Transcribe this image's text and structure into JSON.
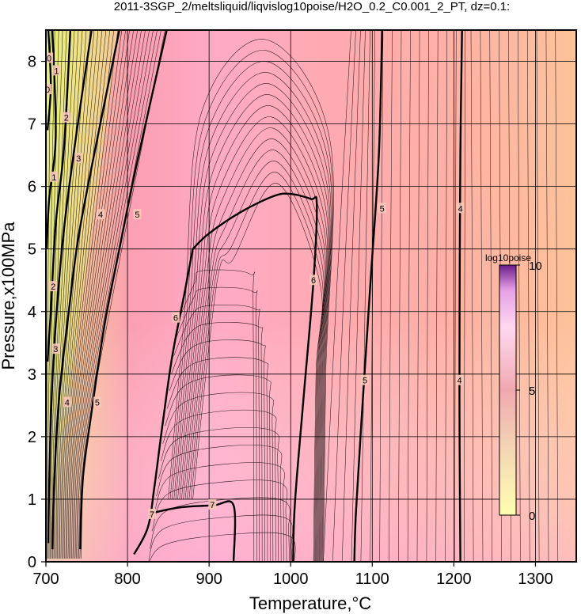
{
  "chart_data": {
    "type": "heatmap",
    "title": "2011-3SGP_2/meltsliquid/liqvislog10poise/H2O_0.2_C0.001_2_PT, dz=0.1:",
    "xlabel": "Temperature,°C",
    "ylabel": "Pressure,x100MPa",
    "xlim": [
      700,
      1350
    ],
    "ylim": [
      0,
      8.5
    ],
    "x_ticks": [
      700,
      800,
      900,
      1000,
      1100,
      1200,
      1300
    ],
    "y_ticks": [
      0,
      1,
      2,
      3,
      4,
      5,
      6,
      7,
      8
    ],
    "grid": true,
    "colorbar": {
      "title": "log10poise",
      "range": [
        0,
        10
      ],
      "ticks": [
        0,
        5,
        10
      ],
      "colors": [
        "#ffffb0",
        "#f0c0a0",
        "#ffb0c0",
        "#ff90ff",
        "#5000a0"
      ]
    },
    "background_colors": {
      "low_T_high_P": "#e8f08a",
      "mid": "#ffa6b4",
      "high_T": "#fdbf9a"
    },
    "contours": [
      {
        "level": "0",
        "points": [
          [
            703,
            8.5
          ],
          [
            706,
            7.6
          ],
          [
            702,
            6.9
          ]
        ]
      },
      {
        "level": "1",
        "points": [
          [
            708,
            8.5
          ],
          [
            712,
            6.8
          ],
          [
            704,
            5.8
          ],
          [
            701,
            5.0
          ]
        ]
      },
      {
        "level": "2",
        "points": [
          [
            730,
            8.5
          ],
          [
            722,
            6.6
          ],
          [
            712,
            5.4
          ],
          [
            706,
            4.0
          ],
          [
            702,
            3.2
          ]
        ]
      },
      {
        "level": "3",
        "points": [
          [
            756,
            8.5
          ],
          [
            738,
            6.9
          ],
          [
            722,
            5.3
          ],
          [
            712,
            3.8
          ],
          [
            707,
            2.6
          ],
          [
            704,
            1.2
          ],
          [
            703,
            0.3
          ]
        ]
      },
      {
        "level": "4",
        "points": [
          [
            790,
            8.5
          ],
          [
            762,
            6.7
          ],
          [
            740,
            5.2
          ],
          [
            728,
            4.0
          ],
          [
            716,
            2.6
          ],
          [
            710,
            1.2
          ],
          [
            708,
            0.2
          ]
        ]
      },
      {
        "level": "5",
        "points": [
          [
            848,
            8.5
          ],
          [
            812,
            6.4
          ],
          [
            790,
            5.0
          ],
          [
            772,
            3.8
          ],
          [
            756,
            2.4
          ],
          [
            745,
            1.3
          ],
          [
            742,
            0.2
          ]
        ]
      },
      {
        "level": "6",
        "points": [
          [
            880,
            5.0
          ],
          [
            900,
            5.25
          ],
          [
            940,
            5.6
          ],
          [
            980,
            5.85
          ],
          [
            1000,
            5.88
          ],
          [
            1025,
            5.8
          ],
          [
            1032,
            5.72
          ],
          [
            1028,
            4.5
          ],
          [
            1015,
            2.5
          ],
          [
            1005,
            0.9
          ],
          [
            1003,
            0
          ]
        ]
      },
      {
        "level": "6",
        "points": [
          [
            880,
            5.0
          ],
          [
            870,
            4.3
          ],
          [
            855,
            3.3
          ],
          [
            843,
            2.2
          ],
          [
            833,
            1.2
          ],
          [
            825,
            0.55
          ],
          [
            808,
            0.12
          ]
        ]
      },
      {
        "level": "7",
        "points": [
          [
            830,
            0.78
          ],
          [
            865,
            0.87
          ],
          [
            905,
            0.9
          ],
          [
            930,
            0.9
          ],
          [
            930,
            0
          ]
        ]
      },
      {
        "level": "5",
        "points": [
          [
            1112,
            8.5
          ],
          [
            1108,
            6.5
          ],
          [
            1098,
            4.5
          ],
          [
            1088,
            2.5
          ],
          [
            1080,
            0.8
          ],
          [
            1078,
            0
          ]
        ]
      },
      {
        "level": "4",
        "points": [
          [
            1210,
            8.5
          ],
          [
            1208,
            6.5
          ],
          [
            1207,
            4.0
          ],
          [
            1207,
            2.0
          ],
          [
            1208,
            0
          ]
        ]
      }
    ],
    "contour_labels": [
      {
        "text": "0",
        "x": 704,
        "y": 8.05
      },
      {
        "text": "0",
        "x": 702,
        "y": 7.55
      },
      {
        "text": "1",
        "x": 713,
        "y": 7.85
      },
      {
        "text": "1",
        "x": 710,
        "y": 6.15
      },
      {
        "text": "2",
        "x": 725,
        "y": 7.1
      },
      {
        "text": "2",
        "x": 709,
        "y": 4.4
      },
      {
        "text": "3",
        "x": 740,
        "y": 6.45
      },
      {
        "text": "3",
        "x": 712,
        "y": 3.4
      },
      {
        "text": "4",
        "x": 767,
        "y": 5.55
      },
      {
        "text": "4",
        "x": 726,
        "y": 2.55
      },
      {
        "text": "5",
        "x": 812,
        "y": 5.55
      },
      {
        "text": "5",
        "x": 763,
        "y": 2.55
      },
      {
        "text": "6",
        "x": 1028,
        "y": 4.5
      },
      {
        "text": "6",
        "x": 859,
        "y": 3.9
      },
      {
        "text": "7",
        "x": 830,
        "y": 0.76
      },
      {
        "text": "7",
        "x": 904,
        "y": 0.91
      },
      {
        "text": "5",
        "x": 1112,
        "y": 5.65
      },
      {
        "text": "5",
        "x": 1091,
        "y": 2.9
      },
      {
        "text": "4",
        "x": 1208,
        "y": 5.65
      },
      {
        "text": "4",
        "x": 1207,
        "y": 2.9
      }
    ],
    "legend": "none"
  }
}
